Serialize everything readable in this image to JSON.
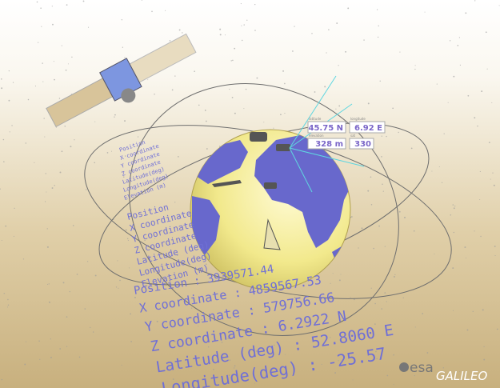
{
  "readout": {
    "latitude_label": "latitude",
    "latitude": "45.75 N",
    "longitude_label": "longitude",
    "longitude": "6.92 E",
    "elevation_label": "elevation",
    "elevation": "328 m",
    "sat_label": "sat",
    "sat": "330"
  },
  "small_block": {
    "rows": [
      "Position",
      "X coordinate",
      "Y coordinate",
      "Z coordinate",
      "Latitude(deg)",
      "Longitude(deg)",
      "Elevation (m)"
    ]
  },
  "medium_block": {
    "rows": [
      "Position",
      "X coordinate",
      "Y coordinate",
      "Z coordinate",
      "Latitude (deg)",
      "Longitude(deg)",
      "Elevation (m)"
    ]
  },
  "large_block": {
    "rows": [
      "Position       : 3939571.44",
      "X coordinate  : 4859567.53",
      "Y coordinate  : 579756.66",
      "Z coordinate  : 6.2922 N",
      "Latitude (deg) : 52.8060 E",
      "Longitude(deg)  : -25.57"
    ]
  },
  "logo": {
    "agency": "esa",
    "program": "GALILEO"
  }
}
